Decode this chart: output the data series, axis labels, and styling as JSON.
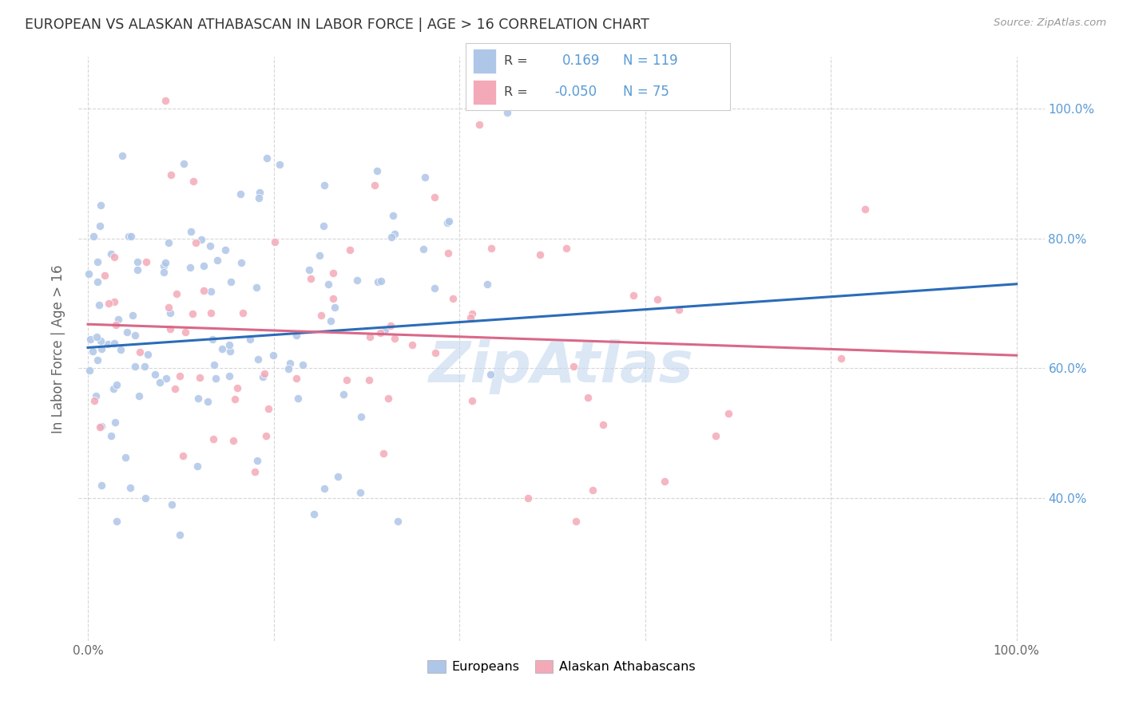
{
  "title": "EUROPEAN VS ALASKAN ATHABASCAN IN LABOR FORCE | AGE > 16 CORRELATION CHART",
  "source_text": "Source: ZipAtlas.com",
  "ylabel": "In Labor Force | Age > 16",
  "blue_R": 0.169,
  "blue_N": 119,
  "pink_R": -0.05,
  "pink_N": 75,
  "blue_color": "#aec6e8",
  "pink_color": "#f4a9b8",
  "blue_line_color": "#2b6cb8",
  "pink_line_color": "#d96888",
  "dot_size": 55,
  "background_color": "#ffffff",
  "grid_color": "#cccccc",
  "title_color": "#333333",
  "axis_label_color": "#666666",
  "tick_label_color_right": "#5b9bd5",
  "legend_box_color": "#ffffff",
  "watermark_color": "#c5d8ef",
  "blue_line_intercept": 0.632,
  "blue_line_slope": 0.098,
  "pink_line_intercept": 0.668,
  "pink_line_slope": -0.048,
  "y_min": 0.18,
  "y_max": 1.08,
  "x_min": -0.01,
  "x_max": 1.03
}
